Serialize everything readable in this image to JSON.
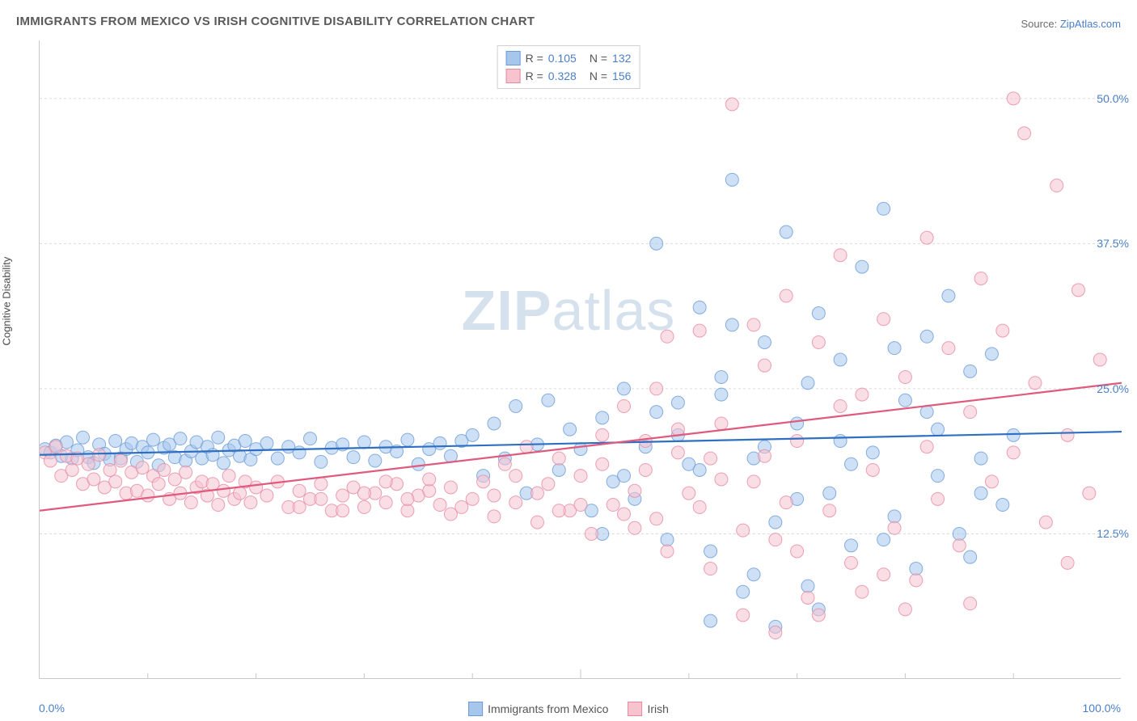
{
  "title": "IMMIGRANTS FROM MEXICO VS IRISH COGNITIVE DISABILITY CORRELATION CHART",
  "source_prefix": "Source: ",
  "source_link": "ZipAtlas.com",
  "ylabel": "Cognitive Disability",
  "watermark_bold": "ZIP",
  "watermark_rest": "atlas",
  "chart": {
    "type": "scatter",
    "xlim": [
      0,
      100
    ],
    "ylim": [
      0,
      55
    ],
    "yticks": [
      12.5,
      25.0,
      37.5,
      50.0
    ],
    "ytick_labels": [
      "12.5%",
      "25.0%",
      "37.5%",
      "50.0%"
    ],
    "xaxis_left_label": "0.0%",
    "xaxis_right_label": "100.0%",
    "xticks_minor": [
      10,
      20,
      30,
      40,
      50,
      60,
      70,
      80,
      90
    ],
    "background_color": "#ffffff",
    "grid_color": "#dcdcdc",
    "axis_color": "#c8c8c8",
    "marker_radius": 8,
    "marker_opacity": 0.55,
    "line_width": 2.2,
    "series": [
      {
        "name": "Immigrants from Mexico",
        "fill_color": "#a6c6ec",
        "stroke_color": "#6a9bd8",
        "line_color": "#2f6fc1",
        "R": "0.105",
        "N": "132",
        "trend": {
          "x1": 0,
          "y1": 19.3,
          "x2": 100,
          "y2": 21.3
        },
        "points": [
          [
            0.5,
            19.8
          ],
          [
            1,
            19.5
          ],
          [
            1.5,
            20.1
          ],
          [
            2,
            19.2
          ],
          [
            2.5,
            20.4
          ],
          [
            3,
            19.0
          ],
          [
            3.5,
            19.7
          ],
          [
            4,
            20.8
          ],
          [
            4.5,
            19.1
          ],
          [
            5,
            18.6
          ],
          [
            5.5,
            20.2
          ],
          [
            6,
            19.4
          ],
          [
            6.5,
            18.9
          ],
          [
            7,
            20.5
          ],
          [
            7.5,
            19.0
          ],
          [
            8,
            19.8
          ],
          [
            8.5,
            20.3
          ],
          [
            9,
            18.7
          ],
          [
            9.5,
            20.0
          ],
          [
            10,
            19.5
          ],
          [
            10.5,
            20.6
          ],
          [
            11,
            18.4
          ],
          [
            11.5,
            19.9
          ],
          [
            12,
            20.2
          ],
          [
            12.5,
            19.1
          ],
          [
            13,
            20.7
          ],
          [
            13.5,
            18.8
          ],
          [
            14,
            19.6
          ],
          [
            14.5,
            20.4
          ],
          [
            15,
            19.0
          ],
          [
            15.5,
            20.0
          ],
          [
            16,
            19.3
          ],
          [
            16.5,
            20.8
          ],
          [
            17,
            18.6
          ],
          [
            17.5,
            19.7
          ],
          [
            18,
            20.1
          ],
          [
            18.5,
            19.2
          ],
          [
            19,
            20.5
          ],
          [
            19.5,
            18.9
          ],
          [
            20,
            19.8
          ],
          [
            21,
            20.3
          ],
          [
            22,
            19.0
          ],
          [
            23,
            20.0
          ],
          [
            24,
            19.5
          ],
          [
            25,
            20.7
          ],
          [
            26,
            18.7
          ],
          [
            27,
            19.9
          ],
          [
            28,
            20.2
          ],
          [
            29,
            19.1
          ],
          [
            30,
            20.4
          ],
          [
            31,
            18.8
          ],
          [
            32,
            20.0
          ],
          [
            33,
            19.6
          ],
          [
            34,
            20.6
          ],
          [
            35,
            18.5
          ],
          [
            36,
            19.8
          ],
          [
            37,
            20.3
          ],
          [
            38,
            19.2
          ],
          [
            39,
            20.5
          ],
          [
            40,
            21.0
          ],
          [
            41,
            17.5
          ],
          [
            42,
            22.0
          ],
          [
            43,
            19.0
          ],
          [
            44,
            23.5
          ],
          [
            45,
            16.0
          ],
          [
            46,
            20.2
          ],
          [
            47,
            24.0
          ],
          [
            48,
            18.0
          ],
          [
            49,
            21.5
          ],
          [
            50,
            19.8
          ],
          [
            51,
            14.5
          ],
          [
            52,
            22.5
          ],
          [
            53,
            17.0
          ],
          [
            54,
            25.0
          ],
          [
            55,
            15.5
          ],
          [
            56,
            20.0
          ],
          [
            57,
            23.0
          ],
          [
            58,
            12.0
          ],
          [
            59,
            21.0
          ],
          [
            60,
            18.5
          ],
          [
            61,
            32.0
          ],
          [
            62,
            11.0
          ],
          [
            63,
            26.0
          ],
          [
            64,
            43.0
          ],
          [
            65,
            7.5
          ],
          [
            66,
            19.0
          ],
          [
            67,
            29.0
          ],
          [
            68,
            13.5
          ],
          [
            69,
            38.5
          ],
          [
            70,
            22.0
          ],
          [
            71,
            8.0
          ],
          [
            72,
            31.5
          ],
          [
            73,
            16.0
          ],
          [
            74,
            27.5
          ],
          [
            75,
            11.5
          ],
          [
            76,
            35.5
          ],
          [
            77,
            19.5
          ],
          [
            78,
            40.5
          ],
          [
            79,
            14.0
          ],
          [
            80,
            24.0
          ],
          [
            81,
            9.5
          ],
          [
            82,
            29.5
          ],
          [
            83,
            17.5
          ],
          [
            84,
            33.0
          ],
          [
            85,
            12.5
          ],
          [
            86,
            26.5
          ],
          [
            87,
            19.0
          ],
          [
            88,
            28.0
          ],
          [
            89,
            15.0
          ],
          [
            90,
            21.0
          ],
          [
            62,
            5.0
          ],
          [
            68,
            4.5
          ],
          [
            72,
            6.0
          ],
          [
            59,
            23.8
          ],
          [
            64,
            30.5
          ],
          [
            57,
            37.5
          ],
          [
            66,
            9.0
          ],
          [
            70,
            15.5
          ],
          [
            74,
            20.5
          ],
          [
            78,
            12.0
          ],
          [
            82,
            23.0
          ],
          [
            86,
            10.5
          ],
          [
            61,
            18.0
          ],
          [
            63,
            24.5
          ],
          [
            67,
            20.0
          ],
          [
            71,
            25.5
          ],
          [
            75,
            18.5
          ],
          [
            79,
            28.5
          ],
          [
            83,
            21.5
          ],
          [
            87,
            16.0
          ],
          [
            52,
            12.5
          ],
          [
            54,
            17.5
          ]
        ]
      },
      {
        "name": "Irish",
        "fill_color": "#f6c3cf",
        "stroke_color": "#e78aa0",
        "line_color": "#e05a7d",
        "R": "0.328",
        "N": "156",
        "trend": {
          "x1": 0,
          "y1": 14.5,
          "x2": 100,
          "y2": 25.5
        },
        "points": [
          [
            0.5,
            19.5
          ],
          [
            1,
            18.8
          ],
          [
            1.5,
            20.0
          ],
          [
            2,
            17.5
          ],
          [
            2.5,
            19.2
          ],
          [
            3,
            18.0
          ],
          [
            3.5,
            19.0
          ],
          [
            4,
            16.8
          ],
          [
            4.5,
            18.5
          ],
          [
            5,
            17.2
          ],
          [
            5.5,
            19.3
          ],
          [
            6,
            16.5
          ],
          [
            6.5,
            18.0
          ],
          [
            7,
            17.0
          ],
          [
            7.5,
            18.8
          ],
          [
            8,
            16.0
          ],
          [
            8.5,
            17.8
          ],
          [
            9,
            16.2
          ],
          [
            9.5,
            18.2
          ],
          [
            10,
            15.8
          ],
          [
            10.5,
            17.5
          ],
          [
            11,
            16.8
          ],
          [
            11.5,
            18.0
          ],
          [
            12,
            15.5
          ],
          [
            12.5,
            17.2
          ],
          [
            13,
            16.0
          ],
          [
            13.5,
            17.8
          ],
          [
            14,
            15.2
          ],
          [
            14.5,
            16.5
          ],
          [
            15,
            17.0
          ],
          [
            15.5,
            15.8
          ],
          [
            16,
            16.8
          ],
          [
            16.5,
            15.0
          ],
          [
            17,
            16.2
          ],
          [
            17.5,
            17.5
          ],
          [
            18,
            15.5
          ],
          [
            18.5,
            16.0
          ],
          [
            19,
            17.0
          ],
          [
            19.5,
            15.2
          ],
          [
            20,
            16.5
          ],
          [
            21,
            15.8
          ],
          [
            22,
            17.0
          ],
          [
            23,
            14.8
          ],
          [
            24,
            16.2
          ],
          [
            25,
            15.5
          ],
          [
            26,
            16.8
          ],
          [
            27,
            14.5
          ],
          [
            28,
            15.8
          ],
          [
            29,
            16.5
          ],
          [
            30,
            14.8
          ],
          [
            31,
            16.0
          ],
          [
            32,
            15.2
          ],
          [
            33,
            16.8
          ],
          [
            34,
            14.5
          ],
          [
            35,
            15.8
          ],
          [
            36,
            16.2
          ],
          [
            37,
            15.0
          ],
          [
            38,
            16.5
          ],
          [
            39,
            14.8
          ],
          [
            40,
            15.5
          ],
          [
            41,
            17.0
          ],
          [
            42,
            14.0
          ],
          [
            43,
            18.5
          ],
          [
            44,
            15.2
          ],
          [
            45,
            20.0
          ],
          [
            46,
            13.5
          ],
          [
            47,
            16.8
          ],
          [
            48,
            19.0
          ],
          [
            49,
            14.5
          ],
          [
            50,
            17.5
          ],
          [
            51,
            12.5
          ],
          [
            52,
            21.0
          ],
          [
            53,
            15.0
          ],
          [
            54,
            23.5
          ],
          [
            55,
            13.0
          ],
          [
            56,
            18.0
          ],
          [
            57,
            25.0
          ],
          [
            58,
            11.0
          ],
          [
            59,
            19.5
          ],
          [
            60,
            16.0
          ],
          [
            61,
            30.0
          ],
          [
            62,
            9.5
          ],
          [
            63,
            22.0
          ],
          [
            64,
            49.5
          ],
          [
            65,
            5.5
          ],
          [
            66,
            17.0
          ],
          [
            67,
            27.0
          ],
          [
            68,
            12.0
          ],
          [
            69,
            33.0
          ],
          [
            70,
            20.5
          ],
          [
            71,
            7.0
          ],
          [
            72,
            29.0
          ],
          [
            73,
            14.5
          ],
          [
            74,
            36.5
          ],
          [
            75,
            10.0
          ],
          [
            76,
            24.5
          ],
          [
            77,
            18.0
          ],
          [
            78,
            31.0
          ],
          [
            79,
            13.0
          ],
          [
            80,
            26.0
          ],
          [
            81,
            8.5
          ],
          [
            82,
            38.0
          ],
          [
            83,
            15.5
          ],
          [
            84,
            28.5
          ],
          [
            85,
            11.5
          ],
          [
            86,
            23.0
          ],
          [
            87,
            34.5
          ],
          [
            88,
            17.0
          ],
          [
            89,
            30.0
          ],
          [
            90,
            19.5
          ],
          [
            91,
            47.0
          ],
          [
            92,
            25.5
          ],
          [
            93,
            13.5
          ],
          [
            94,
            42.5
          ],
          [
            95,
            21.0
          ],
          [
            96,
            33.5
          ],
          [
            97,
            16.0
          ],
          [
            98,
            27.5
          ],
          [
            95,
            10.0
          ],
          [
            90,
            50.0
          ],
          [
            58,
            29.5
          ],
          [
            62,
            19.0
          ],
          [
            66,
            30.5
          ],
          [
            70,
            11.0
          ],
          [
            74,
            23.5
          ],
          [
            78,
            9.0
          ],
          [
            82,
            20.0
          ],
          [
            86,
            6.5
          ],
          [
            68,
            4.0
          ],
          [
            72,
            5.5
          ],
          [
            76,
            7.5
          ],
          [
            80,
            6.0
          ],
          [
            55,
            16.2
          ],
          [
            57,
            13.8
          ],
          [
            59,
            21.5
          ],
          [
            61,
            14.8
          ],
          [
            63,
            17.2
          ],
          [
            65,
            12.8
          ],
          [
            67,
            19.2
          ],
          [
            69,
            15.2
          ],
          [
            50,
            15.0
          ],
          [
            52,
            18.5
          ],
          [
            54,
            14.2
          ],
          [
            56,
            20.5
          ],
          [
            46,
            16.0
          ],
          [
            48,
            14.5
          ],
          [
            44,
            17.5
          ],
          [
            42,
            15.8
          ],
          [
            38,
            14.2
          ],
          [
            36,
            17.2
          ],
          [
            34,
            15.5
          ],
          [
            32,
            17.0
          ],
          [
            30,
            16.0
          ],
          [
            28,
            14.5
          ],
          [
            26,
            15.5
          ],
          [
            24,
            14.8
          ]
        ]
      }
    ]
  },
  "legend_bottom": [
    {
      "label": "Immigrants from Mexico",
      "fill": "#a6c6ec",
      "stroke": "#6a9bd8"
    },
    {
      "label": "Irish",
      "fill": "#f6c3cf",
      "stroke": "#e78aa0"
    }
  ]
}
